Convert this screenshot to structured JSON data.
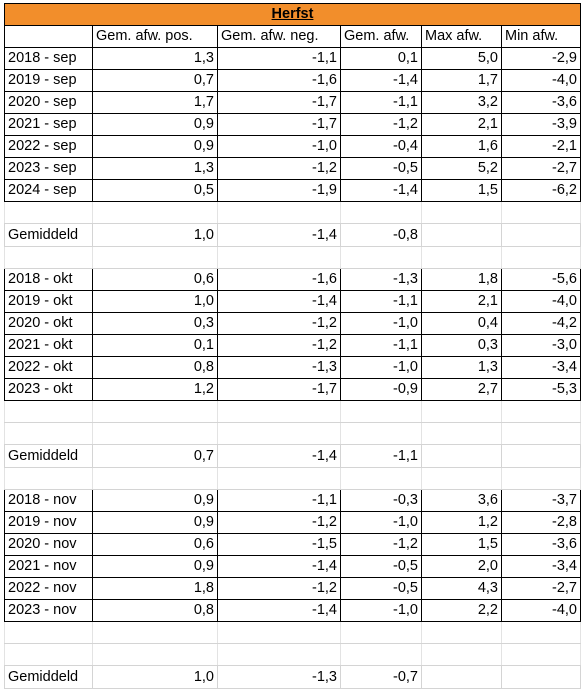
{
  "title": "Herfst",
  "columns": [
    "",
    "Gem. afw. pos.",
    "Gem. afw. neg.",
    "Gem. afw.",
    "Max afw.",
    "Min afw."
  ],
  "sections": [
    {
      "rows": [
        {
          "label": "2018 - sep",
          "values": [
            "1,3",
            "-1,1",
            "0,1",
            "5,0",
            "-2,9"
          ]
        },
        {
          "label": "2019 - sep",
          "values": [
            "0,7",
            "-1,6",
            "-1,4",
            "1,7",
            "-4,0"
          ]
        },
        {
          "label": "2020 - sep",
          "values": [
            "1,7",
            "-1,7",
            "-1,1",
            "3,2",
            "-3,6"
          ]
        },
        {
          "label": "2021 - sep",
          "values": [
            "0,9",
            "-1,7",
            "-1,2",
            "2,1",
            "-3,9"
          ]
        },
        {
          "label": "2022 - sep",
          "values": [
            "0,9",
            "-1,0",
            "-0,4",
            "1,6",
            "-2,1"
          ]
        },
        {
          "label": "2023 - sep",
          "values": [
            "1,3",
            "-1,2",
            "-0,5",
            "5,2",
            "-2,7"
          ]
        },
        {
          "label": "2024 - sep",
          "values": [
            "0,5",
            "-1,9",
            "-1,4",
            "1,5",
            "-6,2"
          ]
        }
      ],
      "average": {
        "label": "Gemiddeld",
        "values": [
          "1,0",
          "-1,4",
          "-0,8"
        ]
      }
    },
    {
      "rows": [
        {
          "label": "2018 - okt",
          "values": [
            "0,6",
            "-1,6",
            "-1,3",
            "1,8",
            "-5,6"
          ]
        },
        {
          "label": "2019 - okt",
          "values": [
            "1,0",
            "-1,4",
            "-1,1",
            "2,1",
            "-4,0"
          ]
        },
        {
          "label": "2020 - okt",
          "values": [
            "0,3",
            "-1,2",
            "-1,0",
            "0,4",
            "-4,2"
          ]
        },
        {
          "label": "2021 - okt",
          "values": [
            "0,1",
            "-1,2",
            "-1,1",
            "0,3",
            "-3,0"
          ]
        },
        {
          "label": "2022 - okt",
          "values": [
            "0,8",
            "-1,3",
            "-1,0",
            "1,3",
            "-3,4"
          ]
        },
        {
          "label": "2023 - okt",
          "values": [
            "1,2",
            "-1,7",
            "-0,9",
            "2,7",
            "-5,3"
          ]
        }
      ],
      "average": {
        "label": "Gemiddeld",
        "values": [
          "0,7",
          "-1,4",
          "-1,1"
        ]
      }
    },
    {
      "rows": [
        {
          "label": "2018 - nov",
          "values": [
            "0,9",
            "-1,1",
            "-0,3",
            "3,6",
            "-3,7"
          ]
        },
        {
          "label": "2019 - nov",
          "values": [
            "0,9",
            "-1,2",
            "-1,0",
            "1,2",
            "-2,8"
          ]
        },
        {
          "label": "2020 - nov",
          "values": [
            "0,6",
            "-1,5",
            "-1,2",
            "1,5",
            "-3,6"
          ]
        },
        {
          "label": "2021 - nov",
          "values": [
            "0,9",
            "-1,4",
            "-0,5",
            "2,0",
            "-3,4"
          ]
        },
        {
          "label": "2022 - nov",
          "values": [
            "1,8",
            "-1,2",
            "-0,5",
            "4,3",
            "-2,7"
          ]
        },
        {
          "label": "2023 - nov",
          "values": [
            "0,8",
            "-1,4",
            "-1,0",
            "2,2",
            "-4,0"
          ]
        }
      ],
      "average": {
        "label": "Gemiddeld",
        "values": [
          "1,0",
          "-1,3",
          "-0,7"
        ]
      }
    }
  ],
  "colors": {
    "header_fill": "#f28e2b",
    "grid": "#d4d4d4",
    "border": "#000000"
  }
}
